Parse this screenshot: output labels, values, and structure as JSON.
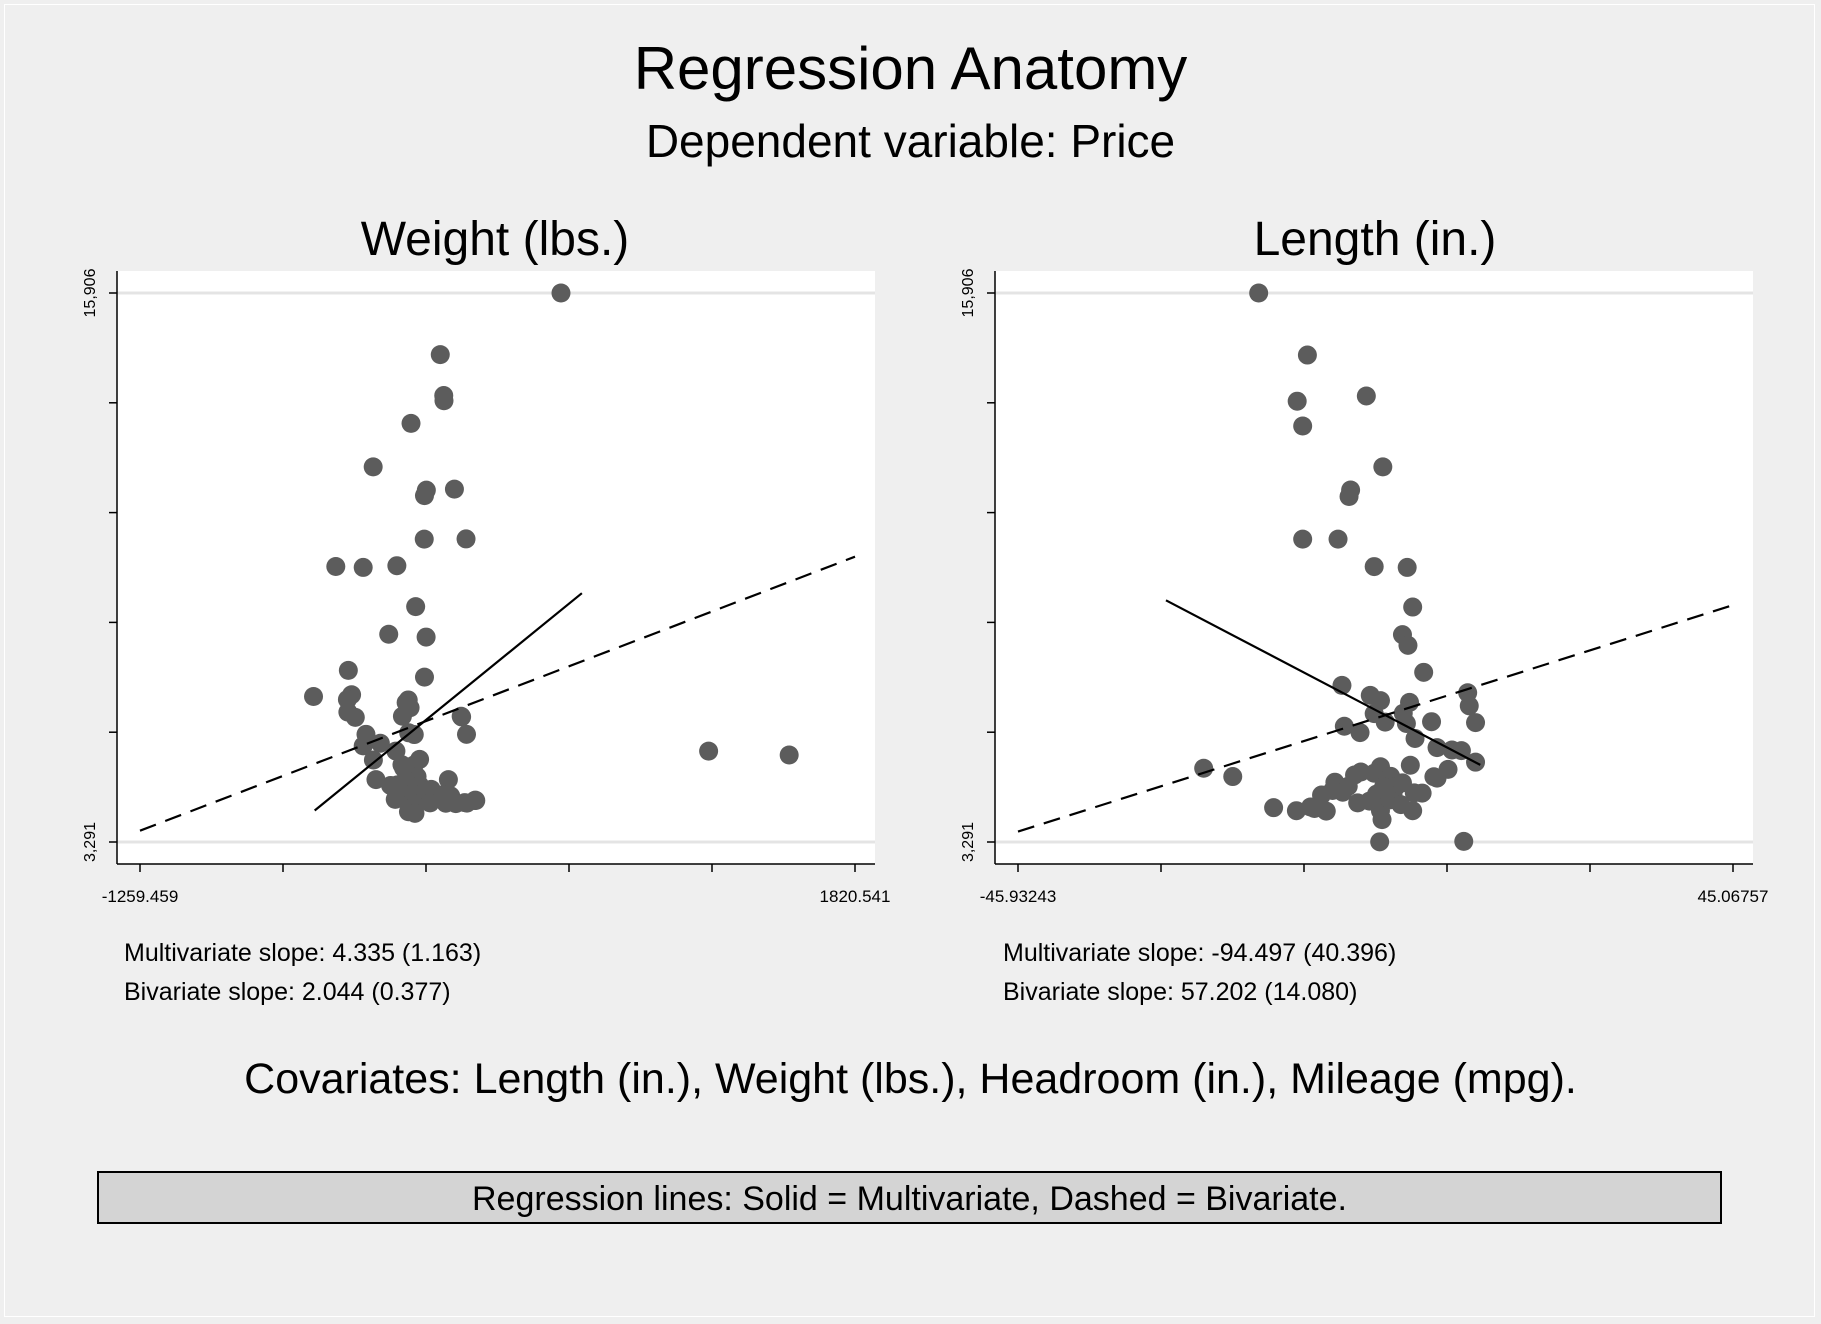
{
  "figure": {
    "title": "Regression Anatomy",
    "subtitle": "Dependent variable: Price",
    "covariates": "Covariates: Length (in.), Weight (lbs.), Headroom (in.), Mileage (mpg).",
    "legend_text": "Regression lines: Solid = Multivariate, Dashed = Bivariate."
  },
  "colors": {
    "background": "#efefef",
    "plot_area": "#ffffff",
    "points": "#5c5c5c",
    "lines": "#000000",
    "gridlines": "#e4e4e4",
    "legend_box": "#d4d4d4"
  },
  "chart_data": [
    {
      "type": "scatter",
      "title": "Weight (lbs.)",
      "xlabel": "",
      "ylabel": "",
      "xlim": [
        -1259.459,
        1820.541
      ],
      "ylim": [
        3291,
        15906
      ],
      "x_tick_labels": [
        "-1259.459",
        "1820.541"
      ],
      "y_tick_labels": [
        "3,291",
        "15,906"
      ],
      "y_minor_ticks": [
        5814,
        8337,
        10860,
        13383
      ],
      "x_minor_ticks": [
        -643.459,
        -27.459,
        588.541,
        1204.541
      ],
      "grid": "horizontal at y-axis labels",
      "notes": {
        "multivariate": "Multivariate slope: 4.335 (1.163)",
        "bivariate": "Bivariate slope: 2.044 (0.377)"
      },
      "multivariate_line": {
        "x": [
          -507,
          644
        ],
        "y": [
          4015,
          9008
        ],
        "style": "solid"
      },
      "bivariate_line": {
        "x": [
          -1259.459,
          1820.541
        ],
        "y": [
          3551,
          9847
        ],
        "style": "dashed"
      },
      "points": [
        {
          "x": 554,
          "y": 15906
        },
        {
          "x": 34,
          "y": 14490
        },
        {
          "x": 49,
          "y": 13550
        },
        {
          "x": 50,
          "y": 13430
        },
        {
          "x": -92,
          "y": 12910
        },
        {
          "x": -255,
          "y": 11910
        },
        {
          "x": -26,
          "y": 11375
        },
        {
          "x": 95,
          "y": 11400
        },
        {
          "x": -34,
          "y": 11250
        },
        {
          "x": 145,
          "y": 10255
        },
        {
          "x": -35,
          "y": 10250
        },
        {
          "x": -298,
          "y": 9600
        },
        {
          "x": -153,
          "y": 9640
        },
        {
          "x": -72,
          "y": 8700
        },
        {
          "x": -416,
          "y": 9622
        },
        {
          "x": -188,
          "y": 8065
        },
        {
          "x": -27,
          "y": 8000
        },
        {
          "x": -362,
          "y": 7235
        },
        {
          "x": -34,
          "y": 7080
        },
        {
          "x": -512,
          "y": 6635
        },
        {
          "x": -348,
          "y": 6675
        },
        {
          "x": -366,
          "y": 6565
        },
        {
          "x": -104,
          "y": 6555
        },
        {
          "x": -113,
          "y": 6495
        },
        {
          "x": -96,
          "y": 6375
        },
        {
          "x": 124,
          "y": 6180
        },
        {
          "x": 147,
          "y": 5765
        },
        {
          "x": -129,
          "y": 6180
        },
        {
          "x": 126,
          "y": 6165
        },
        {
          "x": -364,
          "y": 6275
        },
        {
          "x": -332,
          "y": 6155
        },
        {
          "x": -286,
          "y": 5765
        },
        {
          "x": -102,
          "y": 5800
        },
        {
          "x": -78,
          "y": 5760
        },
        {
          "x": -224,
          "y": 5560
        },
        {
          "x": -298,
          "y": 5500
        },
        {
          "x": -254,
          "y": 5175
        },
        {
          "x": -157,
          "y": 5380
        },
        {
          "x": -131,
          "y": 5065
        },
        {
          "x": -124,
          "y": 4990
        },
        {
          "x": -79,
          "y": 5060
        },
        {
          "x": -66,
          "y": 4795
        },
        {
          "x": -55,
          "y": 5190
        },
        {
          "x": -103,
          "y": 4500
        },
        {
          "x": -118,
          "y": 4700
        },
        {
          "x": -113,
          "y": 4715
        },
        {
          "x": -150,
          "y": 4605
        },
        {
          "x": -180,
          "y": 4590
        },
        {
          "x": -243,
          "y": 4725
        },
        {
          "x": -54,
          "y": 4590
        },
        {
          "x": -47,
          "y": 4395
        },
        {
          "x": -30,
          "y": 4455
        },
        {
          "x": -125,
          "y": 4390
        },
        {
          "x": -160,
          "y": 4270
        },
        {
          "x": -88,
          "y": 4190
        },
        {
          "x": -5,
          "y": 4500
        },
        {
          "x": 69,
          "y": 4725
        },
        {
          "x": -11,
          "y": 4395
        },
        {
          "x": -5,
          "y": 4280
        },
        {
          "x": -85,
          "y": 4080
        },
        {
          "x": -103,
          "y": 3986
        },
        {
          "x": -75,
          "y": 3950
        },
        {
          "x": -10,
          "y": 4190
        },
        {
          "x": 58,
          "y": 4181
        },
        {
          "x": 79,
          "y": 4350
        },
        {
          "x": 47,
          "y": 4380
        },
        {
          "x": 101,
          "y": 4172
        },
        {
          "x": 183,
          "y": 4244
        },
        {
          "x": 187,
          "y": 4245
        },
        {
          "x": 185,
          "y": 4253
        },
        {
          "x": 149,
          "y": 4185
        },
        {
          "x": 139,
          "y": 4195
        },
        {
          "x": 1190,
          "y": 5379
        },
        {
          "x": 1537,
          "y": 5290
        }
      ]
    },
    {
      "type": "scatter",
      "title": "Length (in.)",
      "xlabel": "",
      "ylabel": "",
      "xlim": [
        -45.93243,
        45.06757
      ],
      "ylim": [
        3291,
        15906
      ],
      "x_tick_labels": [
        "-45.93243",
        "45.06757"
      ],
      "y_tick_labels": [
        "3,291",
        "15,906"
      ],
      "y_minor_ticks": [
        5814,
        8337,
        10860,
        13383
      ],
      "x_minor_ticks": [
        -27.73243,
        -9.53243,
        8.66757,
        26.86757
      ],
      "grid": "horizontal at y-axis labels",
      "notes": {
        "multivariate": "Multivariate slope: -94.497 (40.396)",
        "bivariate": "Bivariate slope: 57.202 (14.080)"
      },
      "multivariate_line": {
        "x": [
          -27.1,
          12.9
        ],
        "y": [
          8845,
          5063
        ],
        "style": "solid"
      },
      "bivariate_line": {
        "x": [
          -45.93243,
          45.06757
        ],
        "y": [
          3530,
          8735
        ],
        "style": "dashed"
      },
      "points": [
        {
          "x": -15.3,
          "y": 15906
        },
        {
          "x": -9.1,
          "y": 14480
        },
        {
          "x": -10.4,
          "y": 13420
        },
        {
          "x": -9.7,
          "y": 12850
        },
        {
          "x": -1.6,
          "y": 13540
        },
        {
          "x": 0.5,
          "y": 11910
        },
        {
          "x": -3.6,
          "y": 11380
        },
        {
          "x": -3.8,
          "y": 11230
        },
        {
          "x": -9.7,
          "y": 10250
        },
        {
          "x": -5.2,
          "y": 10250
        },
        {
          "x": -0.6,
          "y": 9620
        },
        {
          "x": 3.6,
          "y": 9600
        },
        {
          "x": 4.3,
          "y": 8690
        },
        {
          "x": 3.0,
          "y": 8055
        },
        {
          "x": 3.7,
          "y": 7810
        },
        {
          "x": 5.7,
          "y": 7190
        },
        {
          "x": -4.7,
          "y": 6890
        },
        {
          "x": -1.1,
          "y": 6660
        },
        {
          "x": 0.2,
          "y": 6540
        },
        {
          "x": 3.9,
          "y": 6500
        },
        {
          "x": 11.3,
          "y": 6720
        },
        {
          "x": 11.5,
          "y": 6420
        },
        {
          "x": -0.6,
          "y": 6240
        },
        {
          "x": 0.8,
          "y": 6045
        },
        {
          "x": 3.5,
          "y": 6015
        },
        {
          "x": 6.7,
          "y": 6055
        },
        {
          "x": 12.3,
          "y": 6035
        },
        {
          "x": -4.4,
          "y": 5950
        },
        {
          "x": 3.1,
          "y": 6250
        },
        {
          "x": -2.4,
          "y": 5805
        },
        {
          "x": 4.6,
          "y": 5670
        },
        {
          "x": 7.4,
          "y": 5460
        },
        {
          "x": 9.3,
          "y": 5405
        },
        {
          "x": 10.5,
          "y": 5390
        },
        {
          "x": 12.3,
          "y": 5125
        },
        {
          "x": 4.0,
          "y": 5055
        },
        {
          "x": 0.2,
          "y": 5020
        },
        {
          "x": -0.6,
          "y": 4870
        },
        {
          "x": -2.3,
          "y": 4900
        },
        {
          "x": 1.5,
          "y": 4800
        },
        {
          "x": 7.0,
          "y": 4790
        },
        {
          "x": 1.2,
          "y": 4720
        },
        {
          "x": -0.3,
          "y": 4390
        },
        {
          "x": 2.2,
          "y": 4570
        },
        {
          "x": 0.8,
          "y": 4370
        },
        {
          "x": -3.9,
          "y": 4570
        },
        {
          "x": -5.6,
          "y": 4665
        },
        {
          "x": -3.1,
          "y": 4830
        },
        {
          "x": -4.6,
          "y": 4435
        },
        {
          "x": -5.9,
          "y": 4475
        },
        {
          "x": -7.3,
          "y": 4370
        },
        {
          "x": 1.8,
          "y": 4395
        },
        {
          "x": 3.0,
          "y": 4650
        },
        {
          "x": 4.5,
          "y": 4420
        },
        {
          "x": 7.4,
          "y": 4760
        },
        {
          "x": -22.3,
          "y": 4985
        },
        {
          "x": -18.6,
          "y": 4795
        },
        {
          "x": -8.7,
          "y": 4095
        },
        {
          "x": -10.5,
          "y": 4010
        },
        {
          "x": -13.4,
          "y": 4080
        },
        {
          "x": -8.2,
          "y": 4060
        },
        {
          "x": -6.7,
          "y": 4000
        },
        {
          "x": -2.7,
          "y": 4190
        },
        {
          "x": 0.2,
          "y": 4010
        },
        {
          "x": 4.3,
          "y": 4010
        },
        {
          "x": 0.4,
          "y": 3805
        },
        {
          "x": 10.8,
          "y": 3305
        },
        {
          "x": 0.1,
          "y": 3295
        },
        {
          "x": 5.5,
          "y": 4415
        },
        {
          "x": 8.8,
          "y": 4960
        },
        {
          "x": 1.4,
          "y": 4260
        },
        {
          "x": 0.6,
          "y": 4560
        },
        {
          "x": 2.8,
          "y": 4150
        },
        {
          "x": -1.2,
          "y": 4230
        }
      ]
    }
  ]
}
